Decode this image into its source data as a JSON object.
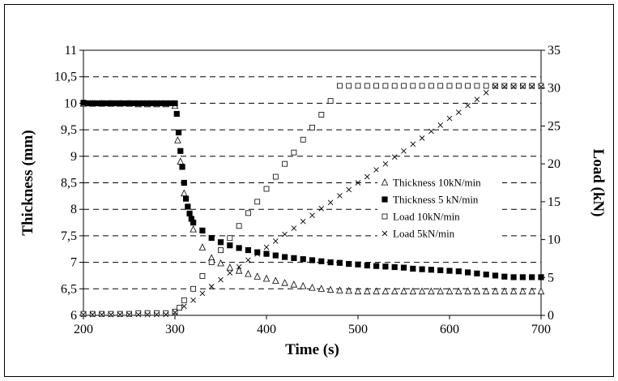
{
  "chart_data": {
    "type": "scatter",
    "xlabel": "Time (s)",
    "ylabel_left": "Thickness (mm)",
    "ylabel_right": "Load (kN)",
    "xlim": [
      200,
      700
    ],
    "ylim_left": [
      6,
      11
    ],
    "ylim_right": [
      0,
      35
    ],
    "x_ticks": [
      "200",
      "300",
      "400",
      "500",
      "600",
      "700"
    ],
    "y_left_ticks": [
      "6",
      "6,5",
      "7",
      "7,5",
      "8",
      "8,5",
      "9",
      "9,5",
      "10",
      "10,5",
      "11"
    ],
    "y_right_ticks": [
      "0",
      "5",
      "10",
      "15",
      "20",
      "25",
      "30",
      "35"
    ],
    "grid": "horizontal dashed",
    "legend_position": "right-center",
    "series": [
      {
        "name": "Thickness 10kN/min",
        "axis": "left",
        "marker": "triangle-open",
        "x": [
          200,
          210,
          220,
          230,
          240,
          250,
          260,
          270,
          280,
          290,
          300,
          303,
          306,
          310,
          320,
          330,
          340,
          350,
          360,
          370,
          380,
          390,
          400,
          410,
          420,
          430,
          440,
          450,
          460,
          470,
          480,
          490,
          500,
          510,
          520,
          530,
          540,
          550,
          560,
          570,
          580,
          590,
          600,
          610,
          620,
          630,
          640,
          650,
          660,
          670,
          680,
          690,
          700
        ],
        "y": [
          9.99,
          9.99,
          9.99,
          9.99,
          9.99,
          9.99,
          9.98,
          9.98,
          9.98,
          9.98,
          9.95,
          9.3,
          8.9,
          8.3,
          7.62,
          7.28,
          7.08,
          6.98,
          6.9,
          6.84,
          6.78,
          6.73,
          6.69,
          6.65,
          6.61,
          6.58,
          6.55,
          6.52,
          6.5,
          6.48,
          6.47,
          6.46,
          6.45,
          6.45,
          6.45,
          6.45,
          6.45,
          6.45,
          6.45,
          6.45,
          6.45,
          6.45,
          6.45,
          6.45,
          6.45,
          6.45,
          6.45,
          6.45,
          6.45,
          6.45,
          6.45,
          6.45,
          6.45
        ]
      },
      {
        "name": "Thickness 5 kN/min",
        "axis": "left",
        "marker": "square-filled",
        "x": [
          200,
          205,
          210,
          215,
          220,
          225,
          230,
          235,
          240,
          245,
          250,
          255,
          260,
          265,
          270,
          275,
          280,
          285,
          290,
          295,
          300,
          302,
          304,
          306,
          308,
          310,
          312,
          314,
          316,
          318,
          320,
          330,
          340,
          350,
          360,
          370,
          380,
          390,
          400,
          410,
          420,
          430,
          440,
          450,
          460,
          470,
          480,
          490,
          500,
          510,
          520,
          530,
          540,
          550,
          560,
          570,
          580,
          590,
          600,
          610,
          620,
          630,
          640,
          650,
          660,
          670,
          680,
          690,
          700
        ],
        "y": [
          10.01,
          10.0,
          10.0,
          10.0,
          10.0,
          10.0,
          10.0,
          10.0,
          10.0,
          10.0,
          10.0,
          10.0,
          10.0,
          10.0,
          10.0,
          10.0,
          10.0,
          10.0,
          10.0,
          10.0,
          10.0,
          9.8,
          9.45,
          9.1,
          8.8,
          8.5,
          8.2,
          8.05,
          7.92,
          7.82,
          7.75,
          7.6,
          7.46,
          7.38,
          7.32,
          7.27,
          7.23,
          7.19,
          7.16,
          7.13,
          7.1,
          7.08,
          7.06,
          7.04,
          7.02,
          7.0,
          6.99,
          6.97,
          6.96,
          6.94,
          6.93,
          6.92,
          6.91,
          6.9,
          6.88,
          6.87,
          6.86,
          6.85,
          6.84,
          6.83,
          6.81,
          6.79,
          6.77,
          6.75,
          6.73,
          6.72,
          6.72,
          6.72,
          6.72
        ]
      },
      {
        "name": "Load 10kN/min",
        "axis": "right",
        "marker": "square-open",
        "x": [
          200,
          210,
          220,
          230,
          240,
          250,
          260,
          270,
          280,
          290,
          300,
          305,
          310,
          320,
          330,
          340,
          350,
          360,
          370,
          380,
          390,
          400,
          410,
          420,
          430,
          440,
          450,
          460,
          470,
          480,
          490,
          500,
          510,
          520,
          530,
          540,
          550,
          560,
          570,
          580,
          590,
          600,
          610,
          620,
          630,
          640,
          650,
          660,
          670,
          680,
          690,
          700
        ],
        "y": [
          0.2,
          0.2,
          0.2,
          0.2,
          0.2,
          0.2,
          0.3,
          0.3,
          0.3,
          0.3,
          0.5,
          1.0,
          2.0,
          3.5,
          5.2,
          7.0,
          8.6,
          10.2,
          11.8,
          13.5,
          15.0,
          16.7,
          18.3,
          20.0,
          21.5,
          23.2,
          24.8,
          26.5,
          28.3,
          30.3,
          30.3,
          30.3,
          30.3,
          30.3,
          30.3,
          30.3,
          30.3,
          30.3,
          30.3,
          30.3,
          30.3,
          30.3,
          30.3,
          30.3,
          30.3,
          30.3,
          30.3,
          30.3,
          30.3,
          30.3,
          30.3,
          30.3
        ]
      },
      {
        "name": "Load  5kN/min",
        "axis": "right",
        "marker": "x",
        "x": [
          200,
          210,
          220,
          230,
          240,
          250,
          260,
          270,
          280,
          290,
          300,
          310,
          320,
          330,
          340,
          350,
          360,
          370,
          380,
          390,
          400,
          410,
          420,
          430,
          440,
          450,
          460,
          470,
          480,
          490,
          500,
          510,
          520,
          530,
          540,
          550,
          560,
          570,
          580,
          590,
          600,
          610,
          620,
          630,
          640,
          650,
          660,
          670,
          680,
          690,
          700
        ],
        "y": [
          0.1,
          0.1,
          0.1,
          0.1,
          0.1,
          0.1,
          0.1,
          0.1,
          0.1,
          0.1,
          0.4,
          1.2,
          2.0,
          2.9,
          3.8,
          4.7,
          5.6,
          6.4,
          7.3,
          8.1,
          9.0,
          9.8,
          10.7,
          11.5,
          12.4,
          13.2,
          14.1,
          14.9,
          15.8,
          16.6,
          17.5,
          18.3,
          19.2,
          20.0,
          20.9,
          21.7,
          22.6,
          23.4,
          24.3,
          25.1,
          26.0,
          26.8,
          27.7,
          28.5,
          29.4,
          30.2,
          30.2,
          30.2,
          30.2,
          30.2,
          30.2
        ]
      }
    ]
  }
}
